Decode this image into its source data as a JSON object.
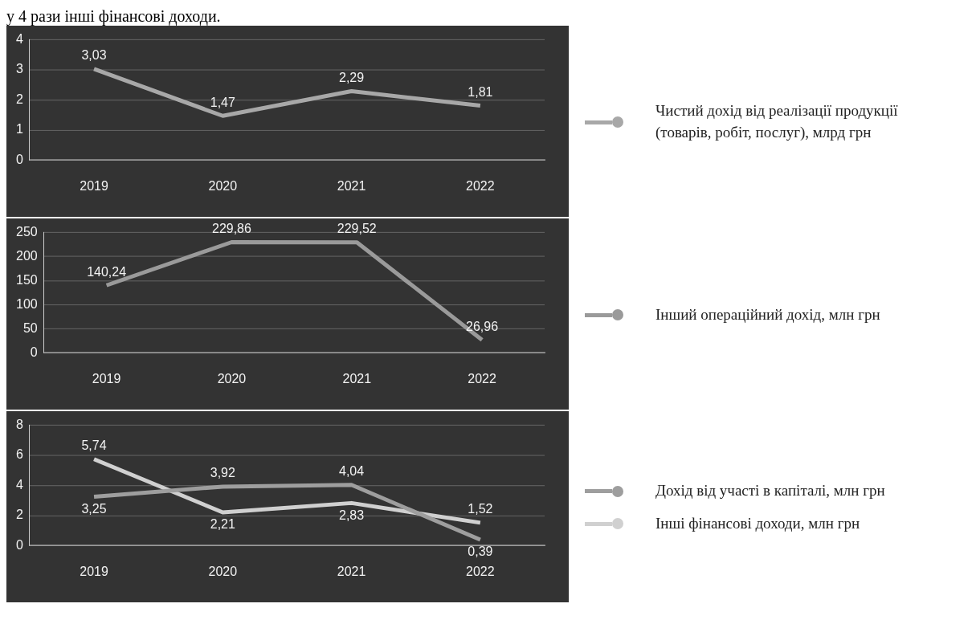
{
  "chart_data": [
    {
      "type": "line",
      "annotations": [
        "у 4 рази інші фінансові доходи."
      ],
      "categories": [
        "2019",
        "2020",
        "2021",
        "2022"
      ],
      "series": [
        {
          "name": "Чистий дохід від реалізації продукції (товарів, робіт, послуг), млрд грн",
          "color": "#a8a8a8",
          "values": [
            3.03,
            1.47,
            2.29,
            1.81
          ],
          "value_labels": [
            "3,03",
            "1,47",
            "2,29",
            "1,81"
          ]
        }
      ],
      "ylim": [
        0,
        4
      ],
      "yticks": [
        0,
        1,
        2,
        3,
        4
      ],
      "grid": "y",
      "legend": "right"
    },
    {
      "type": "line",
      "categories": [
        "2019",
        "2020",
        "2021",
        "2022"
      ],
      "series": [
        {
          "name": "Інший операційний дохід, млн грн",
          "color": "#9a9a9a",
          "values": [
            140.24,
            229.86,
            229.52,
            26.96
          ],
          "value_labels": [
            "140,24",
            "229,86",
            "229,52",
            "26,96"
          ]
        }
      ],
      "ylim": [
        0,
        250
      ],
      "yticks": [
        0,
        50,
        100,
        150,
        200,
        250
      ],
      "grid": "y",
      "legend": "right"
    },
    {
      "type": "line",
      "categories": [
        "2019",
        "2020",
        "2021",
        "2022"
      ],
      "series": [
        {
          "name": "Дохід від участі в капіталі, млн грн",
          "color": "#9e9e9e",
          "values": [
            3.25,
            3.92,
            4.04,
            0.39
          ],
          "value_labels": [
            "3,25",
            "3,92",
            "4,04",
            "0,39"
          ]
        },
        {
          "name": "Інші фінансові доходи, млн грн",
          "color": "#d0d0d0",
          "values": [
            5.74,
            2.21,
            2.83,
            1.52
          ],
          "value_labels": [
            "5,74",
            "2,21",
            "2,83",
            "1,52"
          ]
        }
      ],
      "ylim": [
        0,
        8
      ],
      "yticks": [
        0,
        2,
        4,
        6,
        8
      ],
      "grid": "y",
      "legend": "right"
    }
  ]
}
